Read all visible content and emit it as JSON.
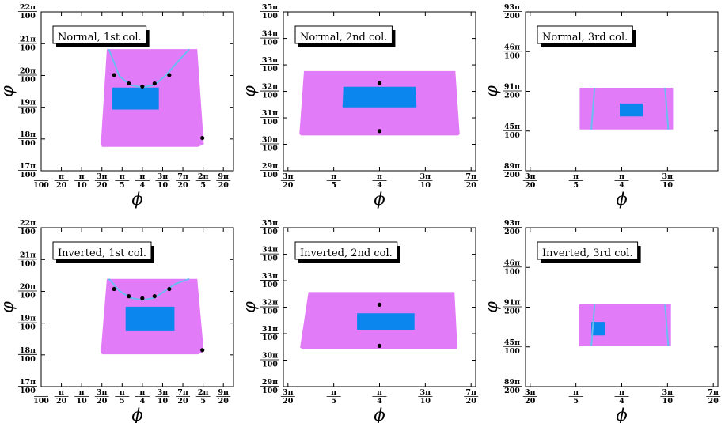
{
  "colors": {
    "region": "#e27bf7",
    "rectangle": "#0a86ee",
    "curve": "#69bdf1",
    "point": "#000000",
    "frame": "#000000"
  },
  "chart_data": [
    {
      "type": "scatter",
      "legend": "Normal, 1st col.",
      "xlabel": "ϕ",
      "ylabel": "φ",
      "xlim": [
        0.0,
        1.4923
      ],
      "ylim": [
        0.5341,
        0.6912
      ],
      "xticks": [
        {
          "value": 0.0,
          "label": [
            "",
            "100"
          ]
        },
        {
          "value": 0.15708,
          "label": [
            "π",
            "20"
          ]
        },
        {
          "value": 0.31416,
          "label": [
            "π",
            "10"
          ]
        },
        {
          "value": 0.47124,
          "label": [
            "3π",
            "20"
          ]
        },
        {
          "value": 0.62832,
          "label": [
            "π",
            "5"
          ]
        },
        {
          "value": 0.7854,
          "label": [
            "π",
            "4"
          ]
        },
        {
          "value": 0.94248,
          "label": [
            "3π",
            "10"
          ]
        },
        {
          "value": 1.09956,
          "label": [
            "7π",
            "20"
          ]
        },
        {
          "value": 1.25664,
          "label": [
            "2π",
            "5"
          ]
        },
        {
          "value": 1.41372,
          "label": [
            "9π",
            "20"
          ]
        }
      ],
      "yticks": [
        {
          "value": 0.6912,
          "label": [
            "22π",
            "100"
          ]
        },
        {
          "value": 0.6597,
          "label": [
            "21π",
            "100"
          ]
        },
        {
          "value": 0.6283,
          "label": [
            "20π",
            "100"
          ]
        },
        {
          "value": 0.5969,
          "label": [
            "19π",
            "100"
          ]
        },
        {
          "value": 0.5655,
          "label": [
            "18π",
            "100"
          ]
        },
        {
          "value": 0.5341,
          "label": [
            "17π",
            "100"
          ]
        }
      ],
      "region": [
        [
          0.51,
          0.6544
        ],
        [
          1.211,
          0.6544
        ],
        [
          1.262,
          0.5603
        ],
        [
          1.216,
          0.5578
        ],
        [
          0.473,
          0.5578
        ],
        [
          0.463,
          0.5603
        ]
      ],
      "rectangle": [
        [
          0.551,
          0.6163
        ],
        [
          0.913,
          0.6163
        ],
        [
          0.913,
          0.5947
        ],
        [
          0.551,
          0.5947
        ]
      ],
      "curve": [
        [
          0.525,
          0.6544
        ],
        [
          0.607,
          0.6277
        ],
        [
          0.691,
          0.619
        ],
        [
          0.785,
          0.6165
        ],
        [
          0.879,
          0.619
        ],
        [
          0.963,
          0.6277
        ],
        [
          1.045,
          0.6398
        ],
        [
          1.149,
          0.6544
        ]
      ],
      "points": [
        [
          0.566,
          0.6287
        ],
        [
          0.68,
          0.6204
        ],
        [
          0.785,
          0.6175
        ],
        [
          0.88,
          0.6204
        ],
        [
          0.994,
          0.6287
        ],
        [
          1.251,
          0.5665
        ]
      ]
    },
    {
      "type": "scatter",
      "legend": "Normal, 2nd col.",
      "xlabel": "ϕ",
      "ylabel": "φ",
      "xlim": [
        0.4555,
        1.1153
      ],
      "ylim": [
        0.9111,
        1.0996
      ],
      "xticks": [
        {
          "value": 0.47124,
          "label": [
            "3π",
            "20"
          ]
        },
        {
          "value": 0.62832,
          "label": [
            "π",
            "5"
          ]
        },
        {
          "value": 0.7854,
          "label": [
            "π",
            "4"
          ]
        },
        {
          "value": 0.94248,
          "label": [
            "3π",
            "10"
          ]
        },
        {
          "value": 1.09956,
          "label": [
            "7π",
            "20"
          ]
        }
      ],
      "yticks": [
        {
          "value": 1.0996,
          "label": [
            "35π",
            "100"
          ]
        },
        {
          "value": 1.0681,
          "label": [
            "34π",
            "100"
          ]
        },
        {
          "value": 1.0367,
          "label": [
            "33π",
            "100"
          ]
        },
        {
          "value": 1.0053,
          "label": [
            "32π",
            "100"
          ]
        },
        {
          "value": 0.9739,
          "label": [
            "31π",
            "100"
          ]
        },
        {
          "value": 0.9425,
          "label": [
            "30π",
            "100"
          ]
        },
        {
          "value": 0.9111,
          "label": [
            "29π",
            "100"
          ]
        }
      ],
      "region": [
        [
          0.5262,
          1.0294
        ],
        [
          1.0455,
          1.0294
        ],
        [
          1.0603,
          0.9551
        ],
        [
          1.0562,
          0.9529
        ],
        [
          0.5159,
          0.9529
        ],
        [
          0.5107,
          0.9551
        ]
      ],
      "rectangle": [
        [
          0.6614,
          1.0108
        ],
        [
          0.9094,
          1.0108
        ],
        [
          0.9125,
          0.9863
        ],
        [
          0.6583,
          0.9863
        ]
      ],
      "curve": [],
      "points": [
        [
          0.7854,
          1.0151
        ],
        [
          0.7854,
          0.9582
        ]
      ]
    },
    {
      "type": "scatter",
      "legend": "Normal, 3rd col.",
      "xlabel": "ϕ",
      "ylabel": "φ",
      "xlim": [
        0.4555,
        1.1153
      ],
      "ylim": [
        1.398,
        1.4608
      ],
      "xticks": [
        {
          "value": 0.47124,
          "label": [
            "3π",
            "20"
          ]
        },
        {
          "value": 0.62832,
          "label": [
            "π",
            "5"
          ]
        },
        {
          "value": 0.7854,
          "label": [
            "π",
            "4"
          ]
        },
        {
          "value": 0.94248,
          "label": [
            "3π",
            "10"
          ]
        }
      ],
      "yticks": [
        {
          "value": 1.4608,
          "label": [
            "93π",
            "200"
          ]
        },
        {
          "value": 1.4451,
          "label": [
            "46π",
            "100"
          ]
        },
        {
          "value": 1.4294,
          "label": [
            "91π",
            "200"
          ]
        },
        {
          "value": 1.4137,
          "label": [
            "45π",
            "100"
          ]
        },
        {
          "value": 1.398,
          "label": [
            "89π",
            "200"
          ]
        }
      ],
      "region": [
        [
          0.6413,
          1.4308
        ],
        [
          0.9615,
          1.4308
        ],
        [
          0.9615,
          1.4143
        ],
        [
          0.6413,
          1.4143
        ]
      ],
      "rectangle": [
        [
          0.7785,
          1.4246
        ],
        [
          0.8573,
          1.4246
        ],
        [
          0.8573,
          1.4195
        ],
        [
          0.7785,
          1.4195
        ]
      ],
      "curve": [
        [
          0.6926,
          1.4308
        ],
        [
          0.6811,
          1.4143
        ]
      ],
      "curve2": [
        [
          0.9339,
          1.4308
        ],
        [
          0.9454,
          1.4143
        ]
      ],
      "points": []
    },
    {
      "type": "scatter",
      "legend": "Inverted, 1st col.",
      "xlabel": "ϕ",
      "ylabel": "φ",
      "xlim": [
        0.0,
        1.4923
      ],
      "ylim": [
        0.5341,
        0.6912
      ],
      "xticks": [
        {
          "value": 0.0,
          "label": [
            "",
            "100"
          ]
        },
        {
          "value": 0.15708,
          "label": [
            "π",
            "20"
          ]
        },
        {
          "value": 0.31416,
          "label": [
            "π",
            "10"
          ]
        },
        {
          "value": 0.47124,
          "label": [
            "3π",
            "20"
          ]
        },
        {
          "value": 0.62832,
          "label": [
            "π",
            "5"
          ]
        },
        {
          "value": 0.7854,
          "label": [
            "π",
            "4"
          ]
        },
        {
          "value": 0.94248,
          "label": [
            "3π",
            "10"
          ]
        },
        {
          "value": 1.09956,
          "label": [
            "7π",
            "20"
          ]
        },
        {
          "value": 1.25664,
          "label": [
            "2π",
            "5"
          ]
        },
        {
          "value": 1.41372,
          "label": [
            "9π",
            "20"
          ]
        }
      ],
      "yticks": [
        {
          "value": 0.6912,
          "label": [
            "22π",
            "100"
          ]
        },
        {
          "value": 0.6597,
          "label": [
            "21π",
            "100"
          ]
        },
        {
          "value": 0.6283,
          "label": [
            "20π",
            "100"
          ]
        },
        {
          "value": 0.5969,
          "label": [
            "19π",
            "100"
          ]
        },
        {
          "value": 0.5655,
          "label": [
            "18π",
            "100"
          ]
        },
        {
          "value": 0.5341,
          "label": [
            "17π",
            "100"
          ]
        }
      ],
      "region": [
        [
          0.51,
          0.6406
        ],
        [
          1.211,
          0.6406
        ],
        [
          1.262,
          0.5685
        ],
        [
          1.216,
          0.5661
        ],
        [
          0.473,
          0.5661
        ],
        [
          0.463,
          0.5685
        ]
      ],
      "rectangle": [
        [
          0.655,
          0.6131
        ],
        [
          1.034,
          0.6131
        ],
        [
          1.034,
          0.5889
        ],
        [
          0.655,
          0.5889
        ]
      ],
      "curve": [
        [
          0.525,
          0.6406
        ],
        [
          0.607,
          0.6289
        ],
        [
          0.691,
          0.6219
        ],
        [
          0.785,
          0.6197
        ],
        [
          0.879,
          0.6219
        ],
        [
          0.963,
          0.6289
        ],
        [
          1.045,
          0.6358
        ],
        [
          1.149,
          0.6406
        ]
      ],
      "points": [
        [
          0.566,
          0.6306
        ],
        [
          0.68,
          0.6235
        ],
        [
          0.785,
          0.6214
        ],
        [
          0.88,
          0.6235
        ],
        [
          0.994,
          0.6306
        ],
        [
          1.251,
          0.5702
        ]
      ]
    },
    {
      "type": "scatter",
      "legend": "Inverted, 2nd col.",
      "xlabel": "ϕ",
      "ylabel": "φ",
      "xlim": [
        0.4555,
        1.1153
      ],
      "ylim": [
        0.9111,
        1.0996
      ],
      "xticks": [
        {
          "value": 0.47124,
          "label": [
            "3π",
            "20"
          ]
        },
        {
          "value": 0.62832,
          "label": [
            "π",
            "5"
          ]
        },
        {
          "value": 0.7854,
          "label": [
            "π",
            "4"
          ]
        },
        {
          "value": 0.94248,
          "label": [
            "3π",
            "10"
          ]
        },
        {
          "value": 1.09956,
          "label": [
            "7π",
            "20"
          ]
        }
      ],
      "yticks": [
        {
          "value": 1.0996,
          "label": [
            "35π",
            "100"
          ]
        },
        {
          "value": 1.0681,
          "label": [
            "34π",
            "100"
          ]
        },
        {
          "value": 1.0367,
          "label": [
            "33π",
            "100"
          ]
        },
        {
          "value": 1.0053,
          "label": [
            "32π",
            "100"
          ]
        },
        {
          "value": 0.9739,
          "label": [
            "31π",
            "100"
          ]
        },
        {
          "value": 0.9425,
          "label": [
            "30π",
            "100"
          ]
        },
        {
          "value": 0.9111,
          "label": [
            "29π",
            "100"
          ]
        }
      ],
      "region": [
        [
          0.5417,
          1.0233
        ],
        [
          1.0424,
          1.0233
        ],
        [
          1.0527,
          0.9574
        ],
        [
          1.0479,
          0.9554
        ],
        [
          0.5231,
          0.9554
        ],
        [
          0.5128,
          0.9574
        ]
      ],
      "rectangle": [
        [
          0.7084,
          0.9981
        ],
        [
          0.9053,
          0.9981
        ],
        [
          0.9053,
          0.9784
        ],
        [
          0.7084,
          0.9784
        ]
      ],
      "curve": [],
      "points": [
        [
          0.7854,
          1.0083
        ],
        [
          0.7854,
          0.9595
        ]
      ]
    },
    {
      "type": "scatter",
      "legend": "Inverted, 3rd col.",
      "xlabel": "ϕ",
      "ylabel": "φ",
      "xlim": [
        0.4555,
        1.1153
      ],
      "ylim": [
        1.398,
        1.4608
      ],
      "xticks": [
        {
          "value": 0.47124,
          "label": [
            "3π",
            "20"
          ]
        },
        {
          "value": 0.62832,
          "label": [
            "π",
            "5"
          ]
        },
        {
          "value": 0.7854,
          "label": [
            "π",
            "4"
          ]
        },
        {
          "value": 0.94248,
          "label": [
            "3π",
            "10"
          ]
        },
        {
          "value": 1.09956,
          "label": [
            "7π",
            "20"
          ]
        }
      ],
      "yticks": [
        {
          "value": 1.4608,
          "label": [
            "93π",
            "200"
          ]
        },
        {
          "value": 1.4451,
          "label": [
            "46π",
            "100"
          ]
        },
        {
          "value": 1.4294,
          "label": [
            "91π",
            "200"
          ]
        },
        {
          "value": 1.4137,
          "label": [
            "45π",
            "100"
          ]
        },
        {
          "value": 1.398,
          "label": [
            "89π",
            "200"
          ]
        }
      ],
      "region": [
        [
          0.6402,
          1.4305
        ],
        [
          0.9543,
          1.4305
        ],
        [
          0.9543,
          1.414
        ],
        [
          0.6402,
          1.414
        ]
      ],
      "rectangle": [
        [
          0.6811,
          1.4236
        ],
        [
          0.7281,
          1.4236
        ],
        [
          0.7281,
          1.4182
        ],
        [
          0.6811,
          1.4182
        ]
      ],
      "curve": [
        [
          0.6926,
          1.4305
        ],
        [
          0.6811,
          1.414
        ]
      ],
      "curve2": [
        [
          0.9339,
          1.4305
        ],
        [
          0.9454,
          1.414
        ]
      ],
      "points": []
    }
  ]
}
